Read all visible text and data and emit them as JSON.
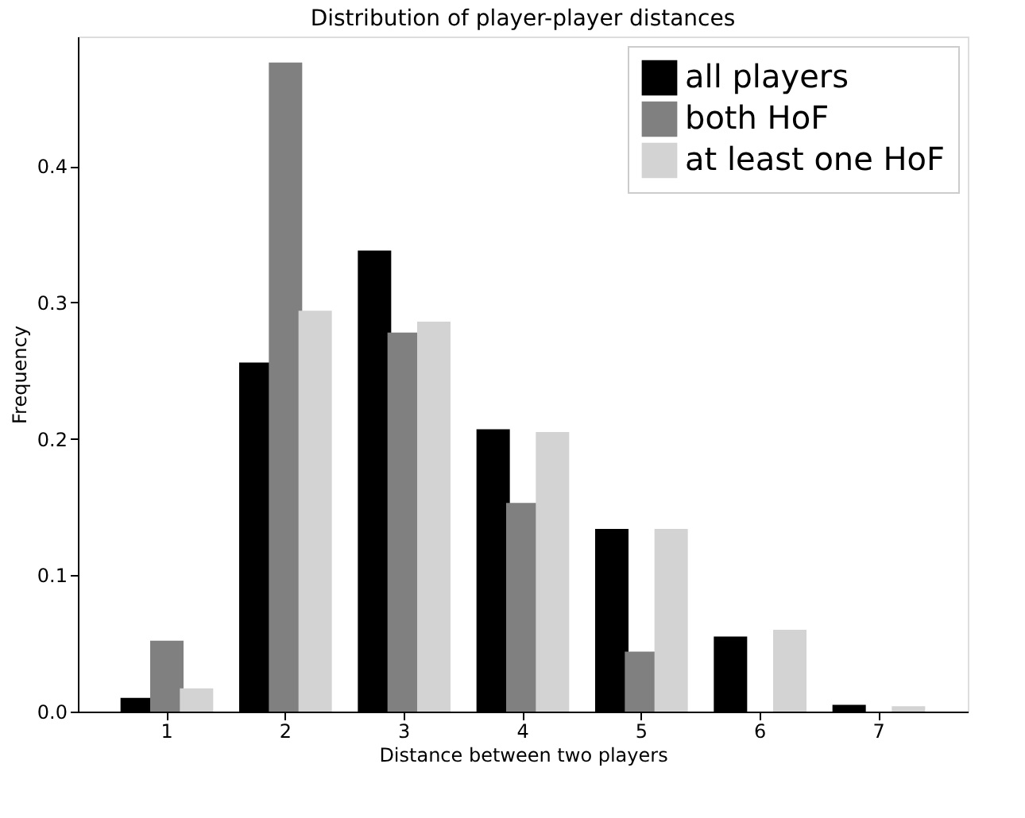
{
  "chart_data": {
    "type": "bar",
    "title": "Distribution of player-player distances",
    "xlabel": "Distance between two players",
    "ylabel": "Frequency",
    "categories": [
      "1",
      "2",
      "3",
      "4",
      "5",
      "6",
      "7"
    ],
    "series": [
      {
        "name": "all players",
        "color": "#000000",
        "values": [
          0.01,
          0.256,
          0.338,
          0.207,
          0.134,
          0.055,
          0.005
        ]
      },
      {
        "name": "both HoF",
        "color": "#808080",
        "values": [
          0.052,
          0.476,
          0.278,
          0.153,
          0.044,
          0,
          0
        ]
      },
      {
        "name": "at least one HoF",
        "color": "#d3d3d3",
        "values": [
          0.017,
          0.294,
          0.286,
          0.205,
          0.134,
          0.06,
          0.004
        ]
      }
    ],
    "ylim": [
      0,
      0.495
    ],
    "yticks": [
      {
        "value": 0,
        "label": "0.0"
      },
      0.1,
      0.2,
      0.3,
      0.4
    ],
    "grid": false,
    "legend": "top right"
  }
}
